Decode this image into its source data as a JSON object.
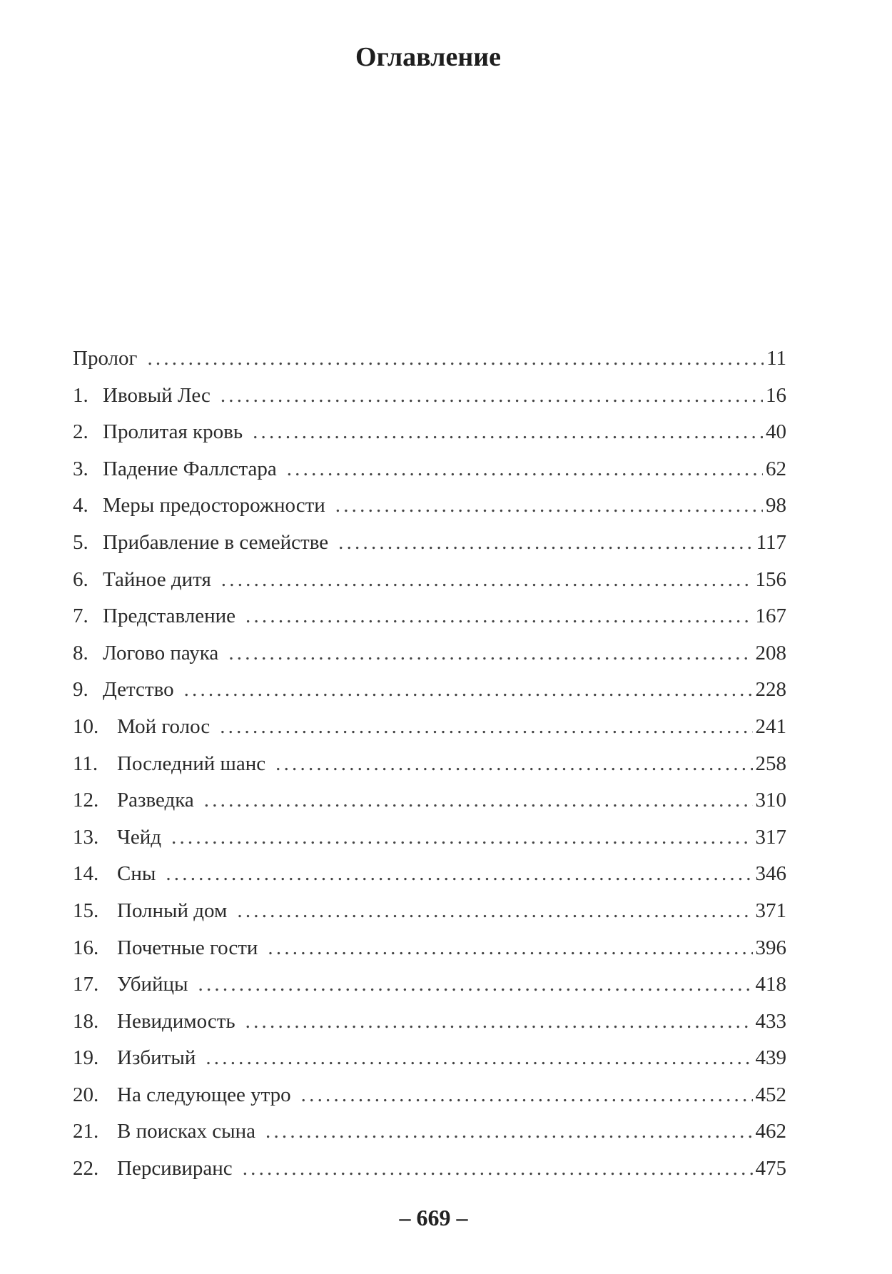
{
  "title": "Оглавление",
  "entries": [
    {
      "num": "",
      "name": "Пролог",
      "page": "11"
    },
    {
      "num": "1.",
      "name": "Ивовый Лес",
      "page": "16"
    },
    {
      "num": "2.",
      "name": "Пролитая кровь",
      "page": "40"
    },
    {
      "num": "3.",
      "name": "Падение Фаллстара",
      "page": "62"
    },
    {
      "num": "4.",
      "name": "Меры предосторожности",
      "page": "98"
    },
    {
      "num": "5.",
      "name": "Прибавление в семействе",
      "page": "117"
    },
    {
      "num": "6.",
      "name": "Тайное дитя",
      "page": "156"
    },
    {
      "num": "7.",
      "name": "Представление",
      "page": "167"
    },
    {
      "num": "8.",
      "name": "Логово паука",
      "page": "208"
    },
    {
      "num": "9.",
      "name": "Детство",
      "page": "228"
    },
    {
      "num": "10.",
      "name": "Мой голос",
      "page": "241"
    },
    {
      "num": "11.",
      "name": "Последний шанс",
      "page": "258"
    },
    {
      "num": "12.",
      "name": "Разведка",
      "page": "310"
    },
    {
      "num": "13.",
      "name": "Чейд",
      "page": "317"
    },
    {
      "num": "14.",
      "name": "Сны",
      "page": "346"
    },
    {
      "num": "15.",
      "name": "Полный дом",
      "page": "371"
    },
    {
      "num": "16.",
      "name": "Почетные гости",
      "page": "396"
    },
    {
      "num": "17.",
      "name": "Убийцы",
      "page": "418"
    },
    {
      "num": "18.",
      "name": "Невидимость",
      "page": "433"
    },
    {
      "num": "19.",
      "name": "Избитый",
      "page": "439"
    },
    {
      "num": "20.",
      "name": "На следующее утро",
      "page": "452"
    },
    {
      "num": "21.",
      "name": "В поисках сына",
      "page": "462"
    },
    {
      "num": "22.",
      "name": "Персивиранс",
      "page": "475"
    }
  ],
  "page_number": "– 669 –"
}
